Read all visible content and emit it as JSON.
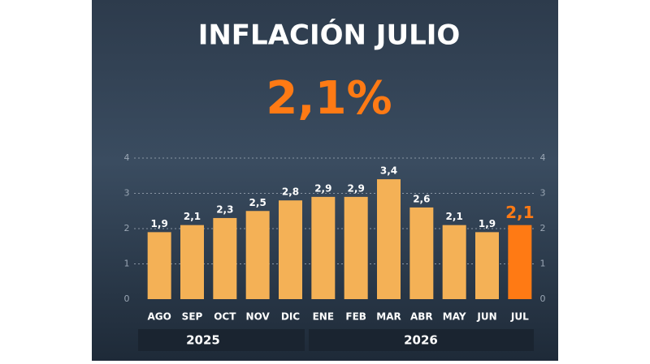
{
  "chart_data": {
    "type": "bar",
    "title": "INFLACIÓN JULIO",
    "headline": "2,1%",
    "categories": [
      "AGO",
      "SEP",
      "OCT",
      "NOV",
      "DIC",
      "ENE",
      "FEB",
      "MAR",
      "ABR",
      "MAY",
      "JUN",
      "JUL"
    ],
    "values": [
      1.9,
      2.1,
      2.3,
      2.5,
      2.8,
      2.9,
      2.9,
      3.4,
      2.6,
      2.1,
      1.9,
      2.1
    ],
    "value_labels": [
      "1,9",
      "2,1",
      "2,3",
      "2,5",
      "2,8",
      "2,9",
      "2,9",
      "3,4",
      "2,6",
      "2,1",
      "1,9",
      "2,1"
    ],
    "colors": [
      "#f4b156",
      "#f4b156",
      "#f4b156",
      "#f4b156",
      "#f4b156",
      "#f4b156",
      "#f4b156",
      "#f4b156",
      "#f4b156",
      "#f4b156",
      "#f4b156",
      "#ff7a14"
    ],
    "ylim": [
      0,
      4
    ],
    "yticks": [
      0,
      1,
      2,
      3,
      4
    ],
    "grid": true,
    "year_labels": [
      "2025",
      "2026"
    ]
  }
}
